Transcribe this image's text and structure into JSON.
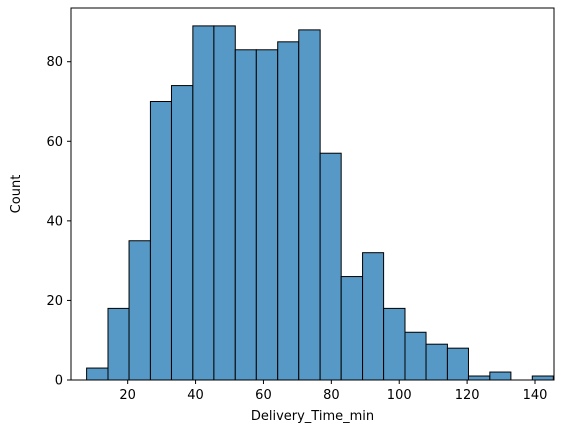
{
  "chart_data": {
    "type": "bar",
    "subtype": "histogram",
    "title": "",
    "xlabel": "Delivery_Time_min",
    "ylabel": "Count",
    "xlim": [
      3.3,
      145.6
    ],
    "ylim": [
      0,
      93.5
    ],
    "xticks": [
      20,
      40,
      60,
      80,
      100,
      120,
      140
    ],
    "yticks": [
      0,
      20,
      40,
      60,
      80
    ],
    "bar_color": "#5799C6",
    "edge_color": "#000000",
    "grid": false,
    "legend": "none",
    "bins": [
      {
        "x0": 7.9,
        "x1": 14.2,
        "value": 3
      },
      {
        "x0": 14.2,
        "x1": 20.4,
        "value": 18
      },
      {
        "x0": 20.4,
        "x1": 26.7,
        "value": 35
      },
      {
        "x0": 26.7,
        "x1": 32.9,
        "value": 70
      },
      {
        "x0": 32.9,
        "x1": 39.2,
        "value": 74
      },
      {
        "x0": 39.2,
        "x1": 45.4,
        "value": 89
      },
      {
        "x0": 45.4,
        "x1": 51.7,
        "value": 89
      },
      {
        "x0": 51.7,
        "x1": 57.9,
        "value": 83
      },
      {
        "x0": 57.9,
        "x1": 64.2,
        "value": 83
      },
      {
        "x0": 64.2,
        "x1": 70.4,
        "value": 85
      },
      {
        "x0": 70.4,
        "x1": 76.7,
        "value": 88
      },
      {
        "x0": 76.7,
        "x1": 82.9,
        "value": 57
      },
      {
        "x0": 82.9,
        "x1": 89.2,
        "value": 26
      },
      {
        "x0": 89.2,
        "x1": 95.4,
        "value": 32
      },
      {
        "x0": 95.4,
        "x1": 101.7,
        "value": 18
      },
      {
        "x0": 101.7,
        "x1": 107.9,
        "value": 12
      },
      {
        "x0": 107.9,
        "x1": 114.2,
        "value": 9
      },
      {
        "x0": 114.2,
        "x1": 120.4,
        "value": 8
      },
      {
        "x0": 120.4,
        "x1": 126.7,
        "value": 1
      },
      {
        "x0": 126.7,
        "x1": 132.9,
        "value": 2
      },
      {
        "x0": 132.9,
        "x1": 139.2,
        "value": 0
      },
      {
        "x0": 139.2,
        "x1": 145.4,
        "value": 1
      }
    ]
  }
}
